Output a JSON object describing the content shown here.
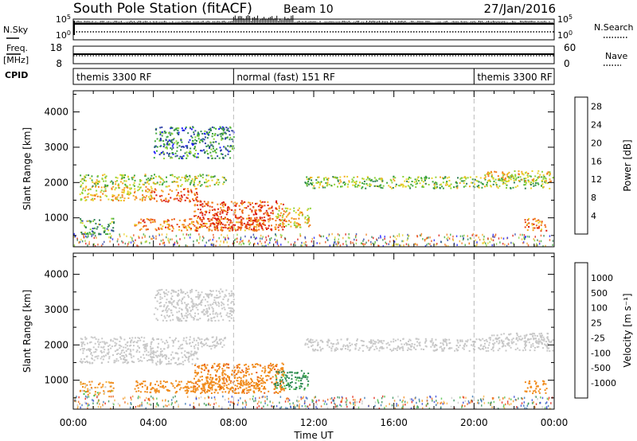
{
  "header": {
    "station": "South Pole Station (fitACF)",
    "beam": "Beam 10",
    "date": "27/Jan/2016"
  },
  "side_labels": {
    "nsky": "N.Sky",
    "freq_line1": "Freq.",
    "freq_line2": "[MHz]",
    "cpid": "CPID",
    "nsearch": "N.Search",
    "nave": "Nave"
  },
  "nsky_panel": {
    "left_ticks": [
      "10^5",
      "10^0"
    ],
    "right_ticks": [
      "10^5",
      "10^0"
    ]
  },
  "freq_panel": {
    "left_ticks": [
      "18",
      "8"
    ],
    "right_ticks": [
      "60",
      "0"
    ]
  },
  "cpid_segments": [
    {
      "label": "themis 3300 RF",
      "start_hour": 0
    },
    {
      "label": "normal (fast) 151 RF",
      "start_hour": 8
    },
    {
      "label": "themis 3300 RF",
      "start_hour": 20
    }
  ],
  "chart_data": [
    {
      "type": "heatmap",
      "title": "",
      "xlabel": "Time UT",
      "ylabel": "Slant Range [km]",
      "xlim_hours": [
        0,
        24
      ],
      "ylim": [
        180,
        4600
      ],
      "x_tick_labels": [
        "00:00",
        "04:00",
        "08:00",
        "12:00",
        "16:00",
        "20:00",
        "00:00"
      ],
      "y_ticks": [
        1000,
        2000,
        3000,
        4000
      ],
      "colorbar": {
        "label": "Power [dB]",
        "ticks": [
          4,
          8,
          12,
          16,
          20,
          24,
          28
        ],
        "range": [
          0,
          30
        ],
        "colors": [
          "#1a1aff",
          "#2c3fa8",
          "#2f7f55",
          "#3fa83a",
          "#8fd33a",
          "#e8d32a",
          "#f5a623",
          "#f07a1a",
          "#e84a10",
          "#d9140a"
        ]
      }
    },
    {
      "type": "heatmap",
      "title": "",
      "xlabel": "Time UT",
      "ylabel": "Slant Range [km]",
      "xlim_hours": [
        0,
        24
      ],
      "ylim": [
        180,
        4600
      ],
      "x_tick_labels": [
        "00:00",
        "04:00",
        "08:00",
        "12:00",
        "16:00",
        "20:00",
        "00:00"
      ],
      "y_ticks": [
        1000,
        2000,
        3000,
        4000
      ],
      "colorbar": {
        "label": "Velocity [m s⁻¹]",
        "ticks": [
          1000,
          500,
          100,
          25,
          -25,
          -100,
          -500,
          -1000
        ],
        "colors": [
          "#2a3fd0",
          "#2e6fb0",
          "#2f8a55",
          "#4fc04a",
          "#c8c8c8",
          "#f5b040",
          "#f08a1a",
          "#e85a10",
          "#e01a0a"
        ]
      }
    }
  ]
}
